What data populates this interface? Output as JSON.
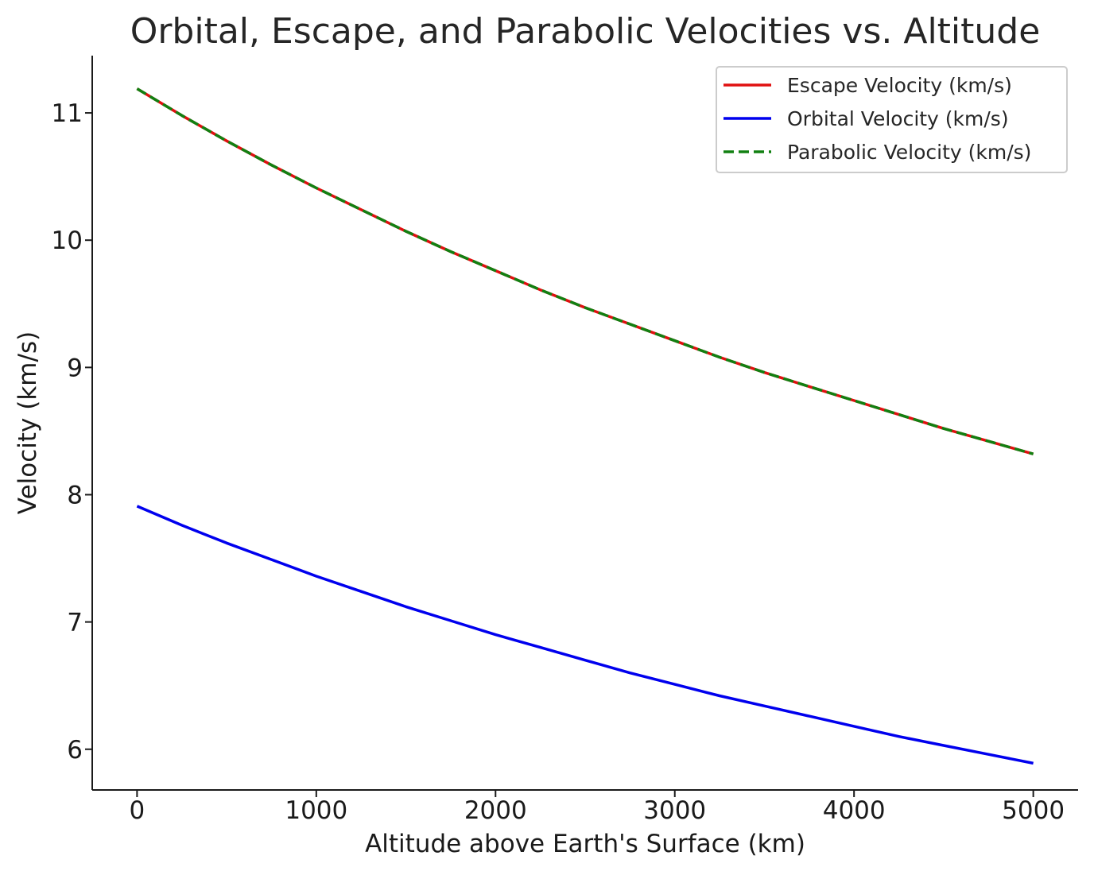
{
  "chart_data": {
    "type": "line",
    "title": "Orbital, Escape, and Parabolic Velocities vs. Altitude",
    "xlabel": "Altitude above Earth's Surface (km)",
    "ylabel": "Velocity (km/s)",
    "xlim": [
      -250,
      5250
    ],
    "ylim": [
      5.68,
      11.45
    ],
    "x_ticks": [
      0,
      1000,
      2000,
      3000,
      4000,
      5000
    ],
    "y_ticks": [
      6,
      7,
      8,
      9,
      10,
      11
    ],
    "x_tick_labels": [
      "0",
      "1000",
      "2000",
      "3000",
      "4000",
      "5000"
    ],
    "y_tick_labels": [
      "6",
      "7",
      "8",
      "9",
      "10",
      "11"
    ],
    "grid": false,
    "legend_position": "top-right",
    "x": [
      0,
      250,
      500,
      750,
      1000,
      1250,
      1500,
      1750,
      2000,
      2250,
      2500,
      2750,
      3000,
      3250,
      3500,
      3750,
      4000,
      4250,
      4500,
      4750,
      5000
    ],
    "series": [
      {
        "name": "Escape Velocity (km/s)",
        "color": "#e01010",
        "style": "solid",
        "values": [
          11.19,
          10.98,
          10.78,
          10.59,
          10.41,
          10.24,
          10.07,
          9.91,
          9.76,
          9.61,
          9.47,
          9.34,
          9.21,
          9.08,
          8.96,
          8.85,
          8.74,
          8.63,
          8.52,
          8.42,
          8.32
        ]
      },
      {
        "name": "Orbital Velocity (km/s)",
        "color": "#0000ee",
        "style": "solid",
        "values": [
          7.91,
          7.76,
          7.62,
          7.49,
          7.36,
          7.24,
          7.12,
          7.01,
          6.9,
          6.8,
          6.7,
          6.6,
          6.51,
          6.42,
          6.34,
          6.26,
          6.18,
          6.1,
          6.03,
          5.96,
          5.89
        ]
      },
      {
        "name": "Parabolic Velocity (km/s)",
        "color": "#118011",
        "style": "dashed",
        "values": [
          11.19,
          10.98,
          10.78,
          10.59,
          10.41,
          10.24,
          10.07,
          9.91,
          9.76,
          9.61,
          9.47,
          9.34,
          9.21,
          9.08,
          8.96,
          8.85,
          8.74,
          8.63,
          8.52,
          8.42,
          8.32
        ]
      }
    ]
  }
}
